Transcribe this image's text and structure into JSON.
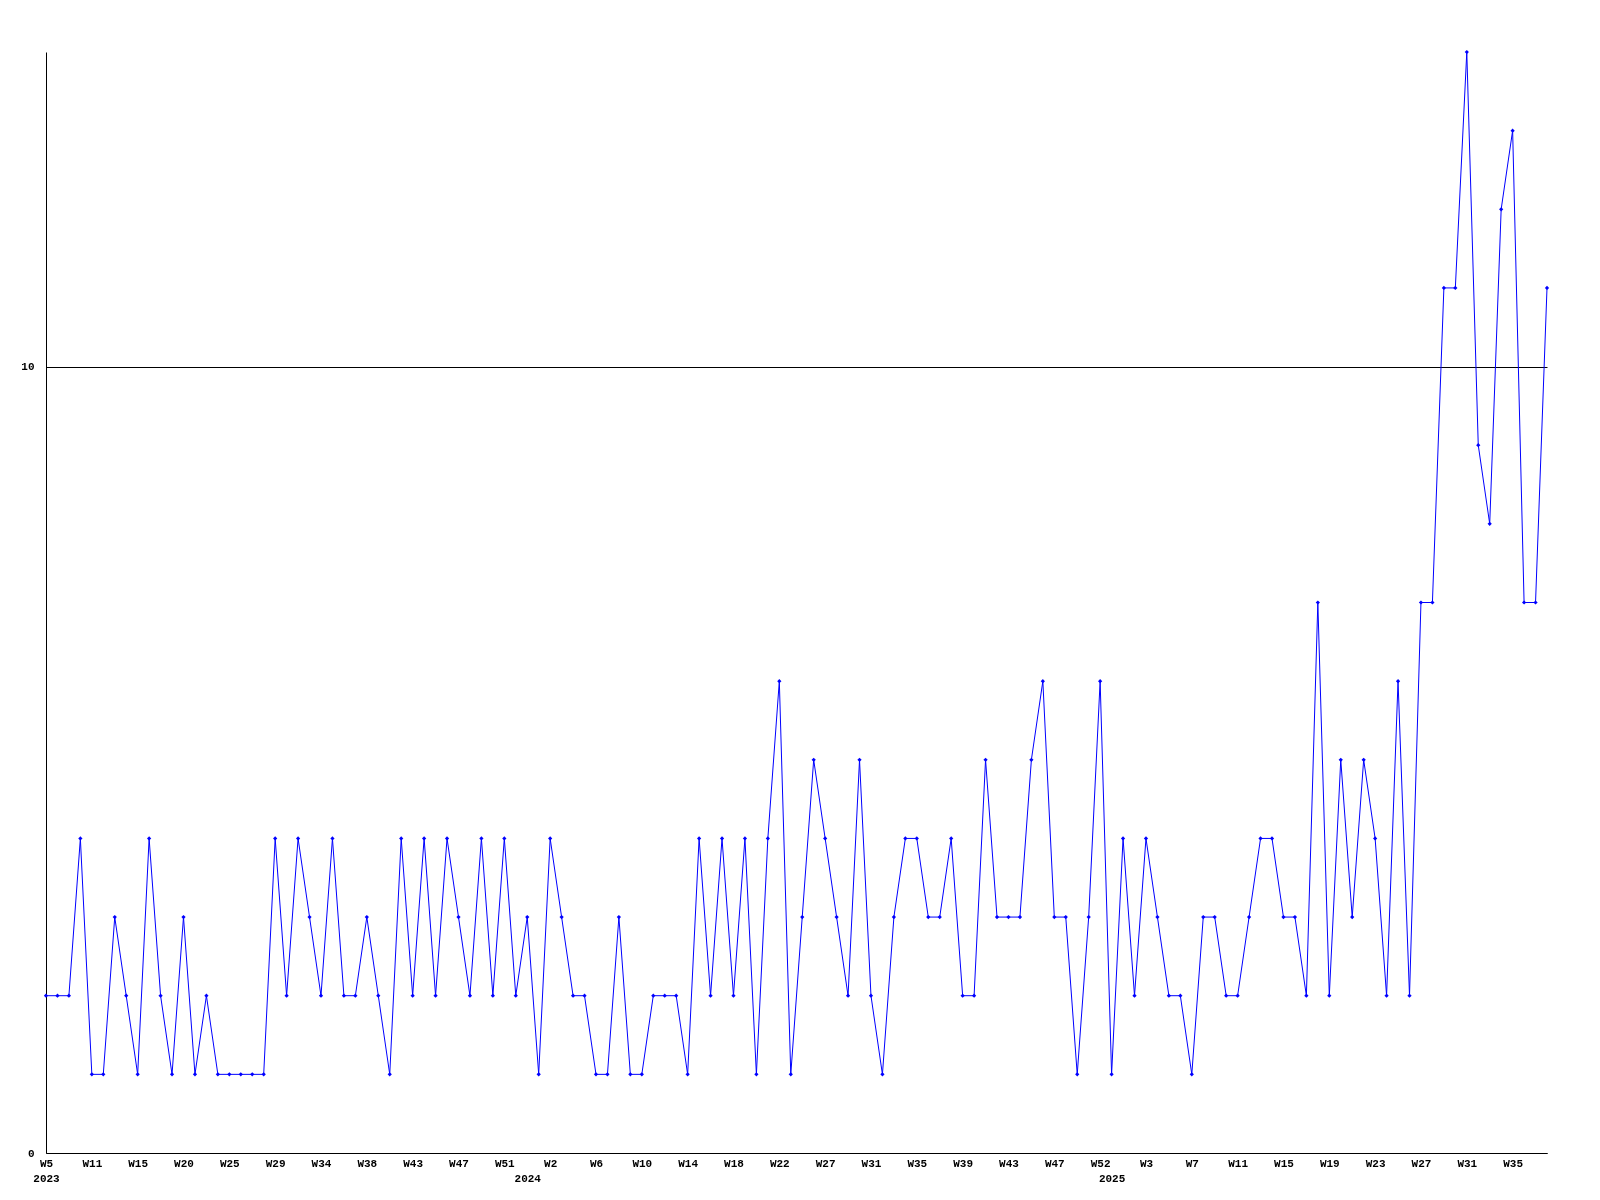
{
  "chart_data": {
    "type": "line",
    "categories": [
      "W5\n2023",
      null,
      null,
      null,
      "W11",
      null,
      null,
      null,
      "W15",
      null,
      null,
      null,
      "W20",
      null,
      null,
      null,
      "W25",
      null,
      null,
      null,
      "W29",
      null,
      null,
      null,
      "W34",
      null,
      null,
      null,
      "W38",
      null,
      null,
      null,
      "W43",
      null,
      null,
      null,
      "W47",
      null,
      null,
      null,
      "W51",
      null,
      "\n2024",
      null,
      "W2",
      null,
      null,
      null,
      "W6",
      null,
      null,
      null,
      "W10",
      null,
      null,
      null,
      "W14",
      null,
      null,
      null,
      "W18",
      null,
      null,
      null,
      "W22",
      null,
      null,
      null,
      "W27",
      null,
      null,
      null,
      "W31",
      null,
      null,
      null,
      "W35",
      null,
      null,
      null,
      "W39",
      null,
      null,
      null,
      "W43",
      null,
      null,
      null,
      "W47",
      null,
      null,
      null,
      "W52",
      "\n2025",
      null,
      null,
      "W3",
      null,
      null,
      null,
      "W7",
      null,
      null,
      null,
      "W11",
      null,
      null,
      null,
      "W15",
      null,
      null,
      null,
      "W19",
      null,
      null,
      null,
      "W23",
      null,
      null,
      null,
      "W27",
      null,
      null,
      null,
      "W31",
      null,
      null,
      null,
      "W35",
      null,
      null,
      null
    ],
    "series": [
      {
        "color": "#0000ff",
        "values": [
          2,
          2,
          2,
          4,
          1,
          1,
          3,
          2,
          1,
          4,
          2,
          1,
          3,
          1,
          2,
          1,
          1,
          1,
          1,
          1,
          4,
          2,
          4,
          3,
          2,
          4,
          2,
          2,
          3,
          2,
          1,
          4,
          2,
          4,
          2,
          4,
          3,
          2,
          4,
          2,
          4,
          2,
          3,
          1,
          4,
          3,
          2,
          2,
          1,
          1,
          3,
          1,
          1,
          2,
          2,
          2,
          1,
          4,
          2,
          4,
          2,
          4,
          1,
          4,
          6,
          1,
          3,
          5,
          4,
          3,
          2,
          5,
          2,
          1,
          3,
          4,
          4,
          3,
          3,
          4,
          2,
          2,
          5,
          3,
          3,
          3,
          5,
          6,
          3,
          3,
          1,
          3,
          6,
          1,
          4,
          2,
          4,
          3,
          2,
          2,
          1,
          3,
          3,
          2,
          2,
          3,
          4,
          4,
          3,
          3,
          2,
          7,
          2,
          5,
          3,
          5,
          4,
          2,
          6,
          2,
          7,
          7,
          11,
          11,
          14,
          9,
          8,
          12,
          13,
          7,
          7,
          11
        ]
      }
    ],
    "ylim": [
      0,
      14
    ],
    "yticks": [
      0,
      10
    ],
    "grid": "y",
    "marker": "diamond",
    "line_style": "solid"
  }
}
